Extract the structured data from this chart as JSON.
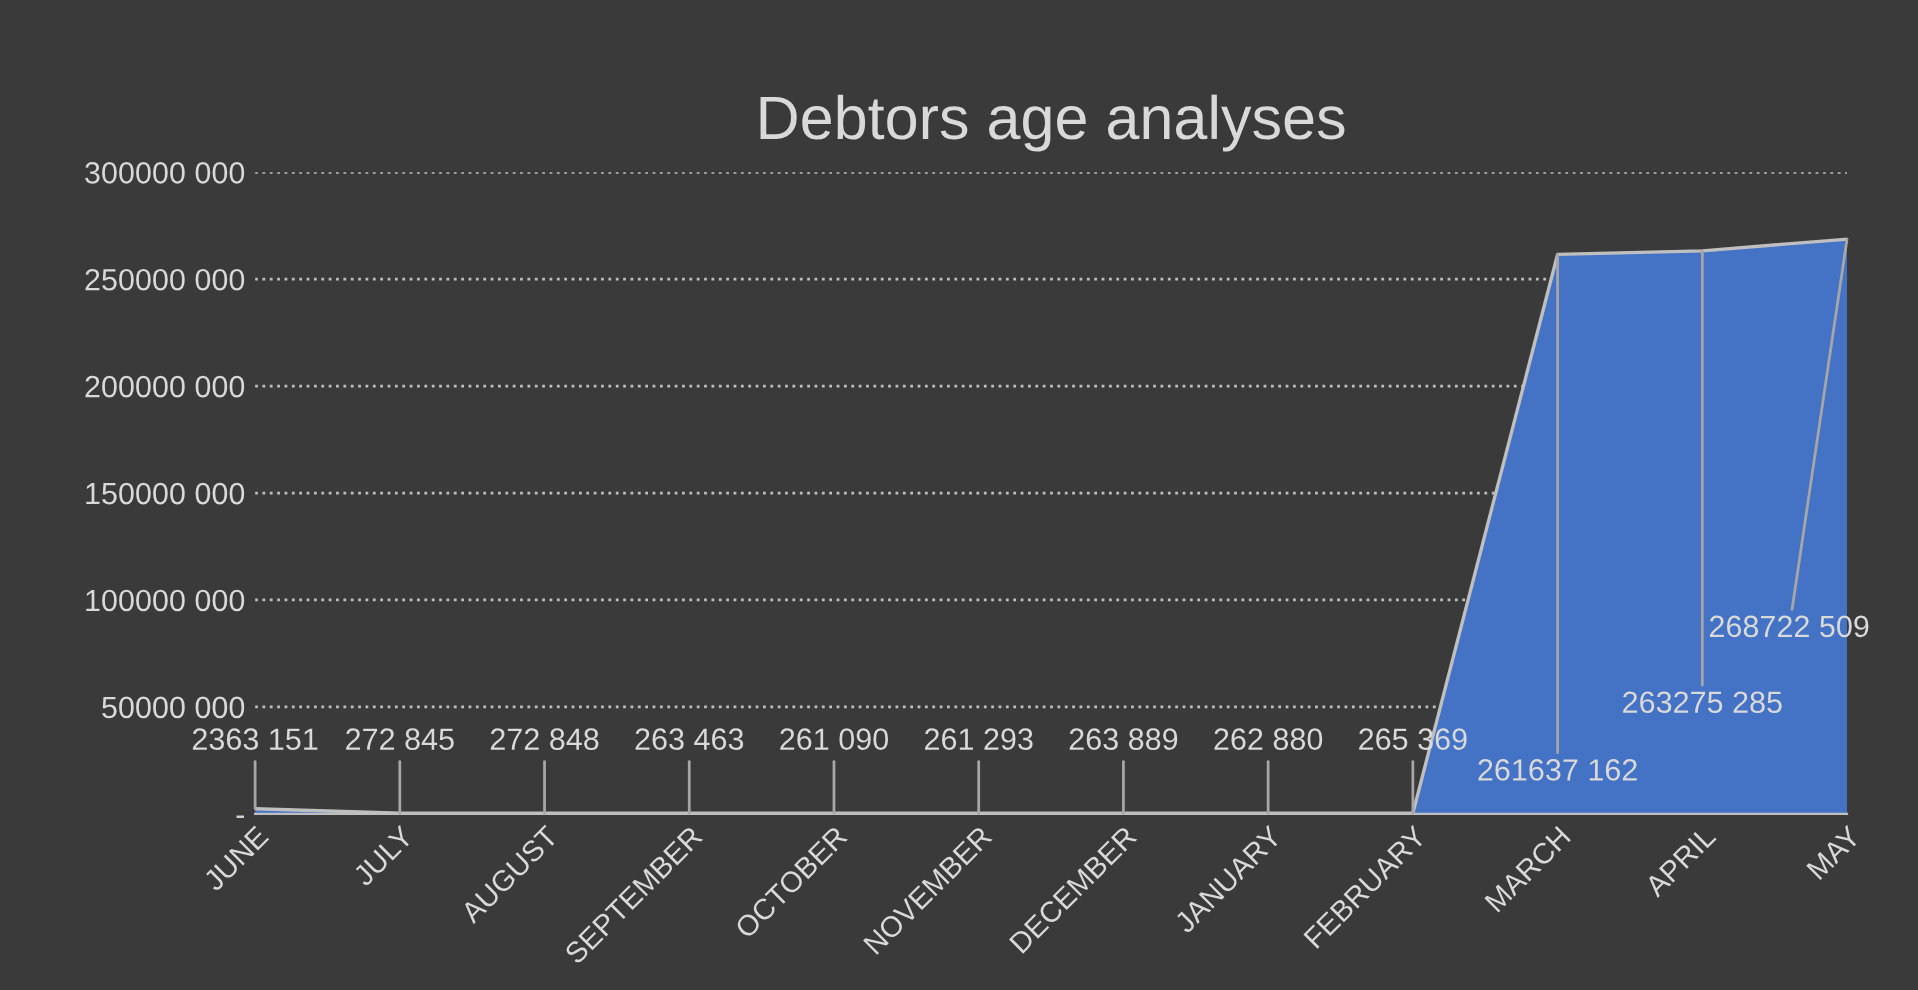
{
  "chart_data": {
    "type": "area",
    "title": "Debtors age analyses",
    "categories": [
      "JUNE",
      "JULY",
      "AUGUST",
      "SEPTEMBER",
      "OCTOBER",
      "NOVEMBER",
      "DECEMBER",
      "JANUARY",
      "FEBRUARY",
      "MARCH",
      "APRIL",
      "MAY"
    ],
    "values": [
      2363151,
      272845,
      272848,
      263463,
      261090,
      261293,
      263889,
      262880,
      265369,
      261637162,
      263275285,
      268722509
    ],
    "value_labels": [
      "2363 151",
      "272 845",
      "272 848",
      "263 463",
      "261 090",
      "261 293",
      "263 889",
      "262 880",
      "265 369",
      "261637 162",
      "263275 285",
      "268722 509"
    ],
    "color": "#4472c4",
    "ylim": [
      0,
      300000000
    ],
    "yticks": [
      {
        "value": 0,
        "label": "-"
      },
      {
        "value": 50000000,
        "label": "50000 000"
      },
      {
        "value": 100000000,
        "label": "100000 000"
      },
      {
        "value": 150000000,
        "label": "150000 000"
      },
      {
        "value": 200000000,
        "label": "200000 000"
      },
      {
        "value": 250000000,
        "label": "250000 000"
      },
      {
        "value": 300000000,
        "label": "300000 000"
      }
    ],
    "grid": "y",
    "legend": false
  }
}
